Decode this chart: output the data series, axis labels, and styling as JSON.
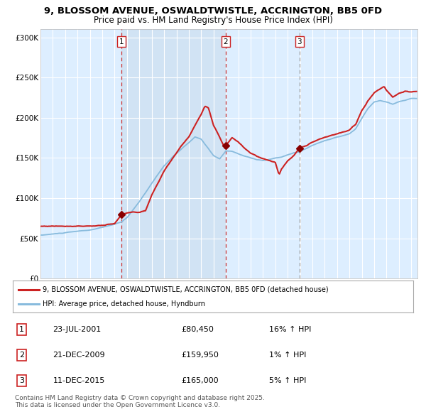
{
  "title": "9, BLOSSOM AVENUE, OSWALDTWISTLE, ACCRINGTON, BB5 0FD",
  "subtitle": "Price paid vs. HM Land Registry's House Price Index (HPI)",
  "background_color": "#ffffff",
  "plot_bg_color": "#ddeeff",
  "grid_color": "#ffffff",
  "hpi_color": "#88bbdd",
  "price_color": "#cc2222",
  "marker_color": "#880000",
  "transactions": [
    {
      "num": 1,
      "date": "23-JUL-2001",
      "price": 80450,
      "year": 2001.56,
      "pct": "16%",
      "dir": "↑"
    },
    {
      "num": 2,
      "date": "21-DEC-2009",
      "price": 159950,
      "year": 2009.97,
      "pct": "1%",
      "dir": "↑"
    },
    {
      "num": 3,
      "date": "11-DEC-2015",
      "price": 165000,
      "year": 2015.95,
      "pct": "5%",
      "dir": "↑"
    }
  ],
  "xmin": 1995.0,
  "xmax": 2025.5,
  "ymin": 0,
  "ymax": 310000,
  "yticks": [
    0,
    50000,
    100000,
    150000,
    200000,
    250000,
    300000
  ],
  "ytick_labels": [
    "£0",
    "£50K",
    "£100K",
    "£150K",
    "£200K",
    "£250K",
    "£300K"
  ],
  "xticks": [
    1995,
    1996,
    1997,
    1998,
    1999,
    2000,
    2001,
    2002,
    2003,
    2004,
    2005,
    2006,
    2007,
    2008,
    2009,
    2010,
    2011,
    2012,
    2013,
    2014,
    2015,
    2016,
    2017,
    2018,
    2019,
    2020,
    2021,
    2022,
    2023,
    2024,
    2025
  ],
  "legend_label_price": "9, BLOSSOM AVENUE, OSWALDTWISTLE, ACCRINGTON, BB5 0FD (detached house)",
  "legend_label_hpi": "HPI: Average price, detached house, Hyndburn",
  "footer": "Contains HM Land Registry data © Crown copyright and database right 2025.\nThis data is licensed under the Open Government Licence v3.0.",
  "shade_color": "#ccdff0",
  "vline1_color": "#cc3333",
  "vline3_color": "#999999"
}
